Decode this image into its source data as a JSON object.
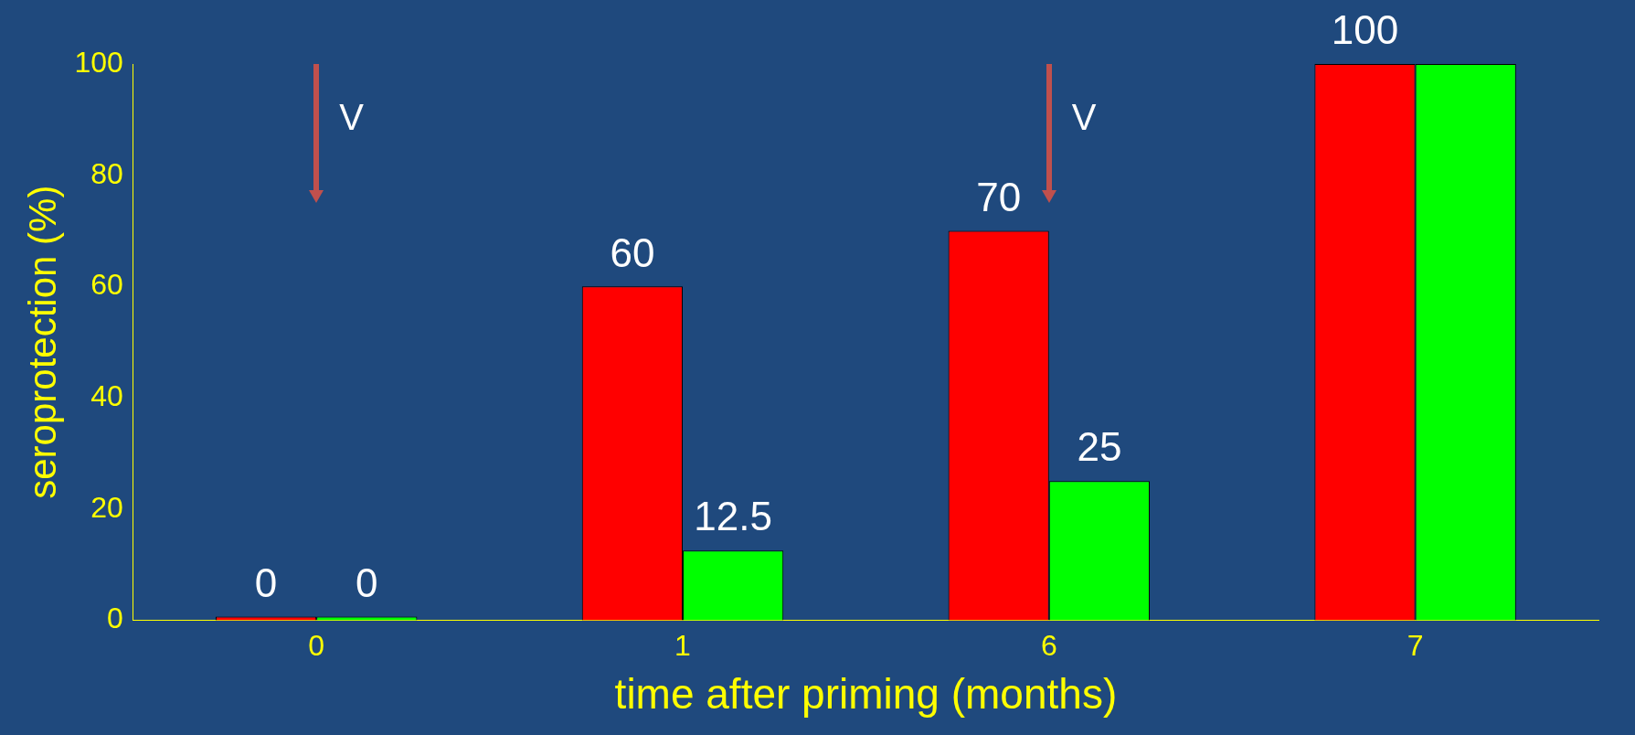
{
  "chart_data": {
    "type": "bar",
    "xlabel": "time after priming (months)",
    "ylabel": "seroprotection (%)",
    "categories": [
      "0",
      "1",
      "6",
      "7"
    ],
    "series": [
      {
        "color": "#ff0000",
        "values": [
          0,
          60,
          70,
          100
        ],
        "value_labels": [
          "0",
          "60",
          "70",
          "100"
        ]
      },
      {
        "color": "#00ff00",
        "values": [
          0,
          12.5,
          25,
          100
        ],
        "value_labels": [
          "0",
          "12.5",
          "25",
          null
        ]
      }
    ],
    "ylim": [
      0,
      100
    ],
    "yticks": [
      0,
      20,
      40,
      60,
      80,
      100
    ],
    "grid": false,
    "legend": false,
    "annotations": [
      "V",
      "V"
    ]
  }
}
